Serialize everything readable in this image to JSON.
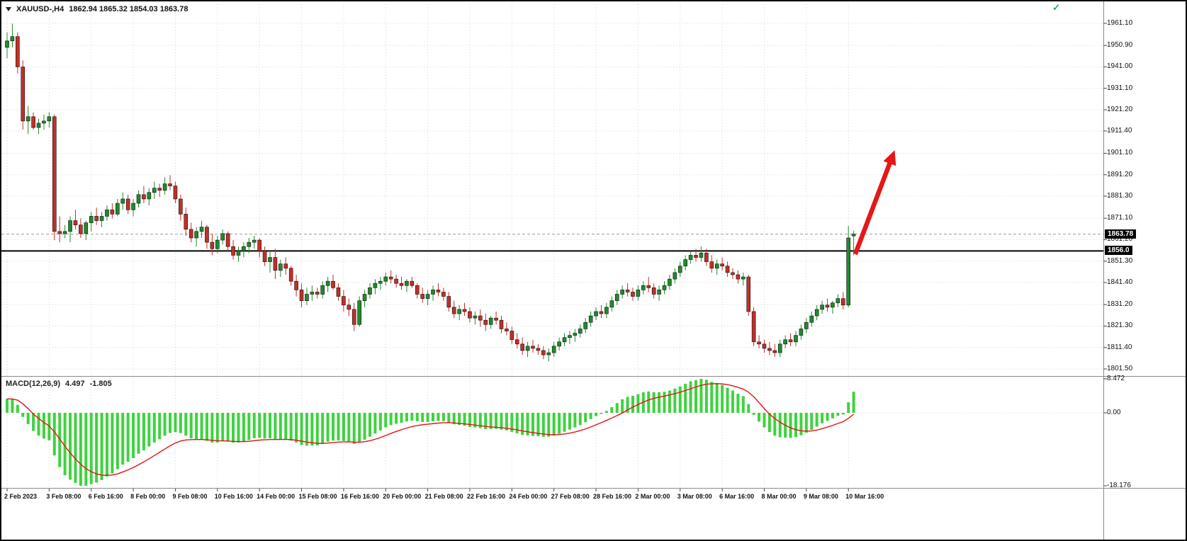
{
  "window": {
    "symbol_label": "XAUUSD-,H4",
    "ohlc_label": "1862.94 1865.32 1854.03 1863.78"
  },
  "price_scale": {
    "bid_badge": "1863.78",
    "line_badge": "1856.0"
  },
  "macd_panel": {
    "label": "MACD(12,26,9)",
    "value_main": "4.497",
    "value_signal": "-1.805",
    "scale_top": "8.472",
    "scale_zero": "0.00",
    "scale_bottom": "-18.176"
  },
  "icons": {
    "green_check": "✓"
  },
  "colors": {
    "bull": "#1f8b2c",
    "bear": "#c22f28",
    "grid": "#d6d6d6",
    "hist": "#3fd23f",
    "signal": "#e31414",
    "hline": "#000000",
    "arrow": "#e51717",
    "separator": "#8a8a8a",
    "badge_bg": "#000000",
    "badge_fg": "#ffffff",
    "text": "#111111"
  },
  "chart_data": {
    "type": "candlestick",
    "symbol": "XAUUSD",
    "timeframe": "H4",
    "title": "XAUUSD-,H4 1862.94 1865.32 1854.03 1863.78",
    "current_price": 1863.78,
    "horizontal_line_price": 1856.0,
    "y_ticks": [
      1961.1,
      1950.9,
      1941.0,
      1931.1,
      1921.2,
      1911.4,
      1901.1,
      1891.2,
      1881.3,
      1871.1,
      1861.2,
      1851.3,
      1841.4,
      1831.2,
      1821.3,
      1811.4,
      1801.5
    ],
    "x_tick_step": 8,
    "x_tick_labels": [
      "2 Feb 2023",
      "3 Feb 08:00",
      "6 Feb 16:00",
      "8 Feb 00:00",
      "9 Feb 08:00",
      "10 Feb 16:00",
      "14 Feb 00:00",
      "15 Feb 08:00",
      "16 Feb 16:00",
      "20 Feb 00:00",
      "21 Feb 08:00",
      "22 Feb 16:00",
      "24 Feb 00:00",
      "27 Feb 08:00",
      "28 Feb 16:00",
      "2 Mar 00:00",
      "3 Mar 08:00",
      "6 Mar 16:00",
      "8 Mar 00:00",
      "9 Mar 08:00",
      "10 Mar 16:00"
    ],
    "candles": [
      [
        1950,
        1957,
        1945,
        1953
      ],
      [
        1953,
        1961,
        1950,
        1955
      ],
      [
        1955,
        1957,
        1938,
        1941
      ],
      [
        1941,
        1944,
        1912,
        1916
      ],
      [
        1916,
        1923,
        1910,
        1918
      ],
      [
        1918,
        1920,
        1912,
        1913
      ],
      [
        1913,
        1917,
        1910,
        1915
      ],
      [
        1915,
        1919,
        1912,
        1916
      ],
      [
        1916,
        1920,
        1913,
        1918
      ],
      [
        1918,
        1919,
        1861,
        1865
      ],
      [
        1865,
        1872,
        1860,
        1864
      ],
      [
        1864,
        1868,
        1862,
        1865
      ],
      [
        1865,
        1872,
        1860,
        1870
      ],
      [
        1870,
        1875,
        1866,
        1868
      ],
      [
        1868,
        1871,
        1862,
        1864
      ],
      [
        1864,
        1870,
        1861,
        1869
      ],
      [
        1869,
        1874,
        1865,
        1872
      ],
      [
        1872,
        1876,
        1868,
        1870
      ],
      [
        1870,
        1874,
        1867,
        1872
      ],
      [
        1872,
        1877,
        1870,
        1875
      ],
      [
        1875,
        1878,
        1871,
        1873
      ],
      [
        1873,
        1880,
        1872,
        1878
      ],
      [
        1878,
        1883,
        1875,
        1880
      ],
      [
        1880,
        1882,
        1873,
        1875
      ],
      [
        1875,
        1880,
        1872,
        1878
      ],
      [
        1878,
        1884,
        1876,
        1882
      ],
      [
        1882,
        1886,
        1878,
        1880
      ],
      [
        1880,
        1885,
        1877,
        1883
      ],
      [
        1883,
        1888,
        1880,
        1885
      ],
      [
        1885,
        1887,
        1881,
        1884
      ],
      [
        1884,
        1890,
        1882,
        1887
      ],
      [
        1887,
        1891,
        1884,
        1886
      ],
      [
        1886,
        1888,
        1878,
        1880
      ],
      [
        1880,
        1882,
        1870,
        1873
      ],
      [
        1873,
        1876,
        1863,
        1866
      ],
      [
        1866,
        1869,
        1860,
        1862
      ],
      [
        1862,
        1867,
        1858,
        1865
      ],
      [
        1865,
        1870,
        1862,
        1867
      ],
      [
        1867,
        1868,
        1857,
        1860
      ],
      [
        1860,
        1864,
        1854,
        1857
      ],
      [
        1857,
        1863,
        1855,
        1861
      ],
      [
        1861,
        1866,
        1859,
        1864
      ],
      [
        1864,
        1865,
        1856,
        1858
      ],
      [
        1858,
        1861,
        1852,
        1854
      ],
      [
        1854,
        1858,
        1851,
        1856
      ],
      [
        1856,
        1860,
        1853,
        1858
      ],
      [
        1858,
        1862,
        1855,
        1860
      ],
      [
        1860,
        1863,
        1857,
        1861
      ],
      [
        1861,
        1862,
        1853,
        1856
      ],
      [
        1856,
        1858,
        1849,
        1851
      ],
      [
        1851,
        1856,
        1846,
        1853
      ],
      [
        1853,
        1857,
        1843,
        1847
      ],
      [
        1847,
        1852,
        1844,
        1850
      ],
      [
        1850,
        1853,
        1845,
        1848
      ],
      [
        1848,
        1849,
        1840,
        1842
      ],
      [
        1842,
        1845,
        1835,
        1838
      ],
      [
        1838,
        1841,
        1830,
        1833
      ],
      [
        1833,
        1839,
        1831,
        1836
      ],
      [
        1836,
        1840,
        1833,
        1837
      ],
      [
        1837,
        1839,
        1834,
        1836
      ],
      [
        1836,
        1842,
        1834,
        1840
      ],
      [
        1840,
        1844,
        1837,
        1842
      ],
      [
        1842,
        1845,
        1838,
        1839
      ],
      [
        1839,
        1841,
        1833,
        1835
      ],
      [
        1835,
        1838,
        1828,
        1831
      ],
      [
        1831,
        1834,
        1826,
        1829
      ],
      [
        1829,
        1832,
        1819,
        1822
      ],
      [
        1822,
        1835,
        1821,
        1833
      ],
      [
        1833,
        1838,
        1830,
        1836
      ],
      [
        1836,
        1841,
        1834,
        1839
      ],
      [
        1839,
        1843,
        1836,
        1841
      ],
      [
        1841,
        1844,
        1838,
        1842
      ],
      [
        1842,
        1846,
        1840,
        1844
      ],
      [
        1844,
        1847,
        1841,
        1843
      ],
      [
        1843,
        1845,
        1839,
        1841
      ],
      [
        1841,
        1844,
        1838,
        1840
      ],
      [
        1840,
        1843,
        1837,
        1842
      ],
      [
        1842,
        1844,
        1839,
        1840
      ],
      [
        1840,
        1841,
        1834,
        1836
      ],
      [
        1836,
        1839,
        1832,
        1834
      ],
      [
        1834,
        1838,
        1831,
        1836
      ],
      [
        1836,
        1840,
        1833,
        1838
      ],
      [
        1838,
        1841,
        1835,
        1837
      ],
      [
        1837,
        1839,
        1833,
        1835
      ],
      [
        1835,
        1837,
        1828,
        1830
      ],
      [
        1830,
        1833,
        1825,
        1827
      ],
      [
        1827,
        1831,
        1824,
        1829
      ],
      [
        1829,
        1832,
        1826,
        1828
      ],
      [
        1828,
        1830,
        1823,
        1825
      ],
      [
        1825,
        1828,
        1822,
        1826
      ],
      [
        1826,
        1829,
        1821,
        1824
      ],
      [
        1824,
        1827,
        1819,
        1822
      ],
      [
        1822,
        1826,
        1820,
        1825
      ],
      [
        1825,
        1828,
        1822,
        1824
      ],
      [
        1824,
        1826,
        1818,
        1820
      ],
      [
        1820,
        1823,
        1817,
        1819
      ],
      [
        1819,
        1821,
        1813,
        1815
      ],
      [
        1815,
        1818,
        1811,
        1813
      ],
      [
        1813,
        1816,
        1808,
        1810
      ],
      [
        1810,
        1814,
        1807,
        1812
      ],
      [
        1812,
        1815,
        1809,
        1811
      ],
      [
        1811,
        1813,
        1808,
        1810
      ],
      [
        1810,
        1812,
        1806,
        1808
      ],
      [
        1808,
        1811,
        1805,
        1809
      ],
      [
        1809,
        1814,
        1807,
        1812
      ],
      [
        1812,
        1816,
        1810,
        1814
      ],
      [
        1814,
        1818,
        1812,
        1816
      ],
      [
        1816,
        1819,
        1813,
        1817
      ],
      [
        1817,
        1820,
        1814,
        1818
      ],
      [
        1818,
        1822,
        1816,
        1820
      ],
      [
        1820,
        1825,
        1818,
        1823
      ],
      [
        1823,
        1828,
        1821,
        1826
      ],
      [
        1826,
        1830,
        1824,
        1828
      ],
      [
        1828,
        1831,
        1825,
        1827
      ],
      [
        1827,
        1832,
        1825,
        1830
      ],
      [
        1830,
        1835,
        1828,
        1833
      ],
      [
        1833,
        1838,
        1831,
        1836
      ],
      [
        1836,
        1840,
        1834,
        1838
      ],
      [
        1838,
        1841,
        1835,
        1837
      ],
      [
        1837,
        1839,
        1833,
        1835
      ],
      [
        1835,
        1840,
        1833,
        1838
      ],
      [
        1838,
        1842,
        1836,
        1840
      ],
      [
        1840,
        1844,
        1837,
        1839
      ],
      [
        1839,
        1841,
        1834,
        1836
      ],
      [
        1836,
        1840,
        1833,
        1838
      ],
      [
        1838,
        1842,
        1836,
        1840
      ],
      [
        1840,
        1845,
        1838,
        1843
      ],
      [
        1843,
        1848,
        1841,
        1846
      ],
      [
        1846,
        1851,
        1844,
        1849
      ],
      [
        1849,
        1854,
        1847,
        1852
      ],
      [
        1852,
        1856,
        1850,
        1854
      ],
      [
        1854,
        1857,
        1851,
        1853
      ],
      [
        1853,
        1858,
        1851,
        1855
      ],
      [
        1855,
        1857,
        1849,
        1851
      ],
      [
        1851,
        1854,
        1846,
        1848
      ],
      [
        1848,
        1852,
        1845,
        1850
      ],
      [
        1850,
        1853,
        1847,
        1849
      ],
      [
        1849,
        1851,
        1844,
        1846
      ],
      [
        1846,
        1848,
        1843,
        1845
      ],
      [
        1845,
        1847,
        1841,
        1843
      ],
      [
        1843,
        1846,
        1840,
        1844
      ],
      [
        1844,
        1845,
        1826,
        1828
      ],
      [
        1828,
        1830,
        1812,
        1814
      ],
      [
        1814,
        1817,
        1811,
        1813
      ],
      [
        1813,
        1815,
        1809,
        1811
      ],
      [
        1811,
        1814,
        1808,
        1810
      ],
      [
        1810,
        1813,
        1807,
        1809
      ],
      [
        1809,
        1815,
        1807,
        1813
      ],
      [
        1813,
        1817,
        1811,
        1815
      ],
      [
        1815,
        1818,
        1812,
        1814
      ],
      [
        1814,
        1819,
        1812,
        1817
      ],
      [
        1817,
        1822,
        1815,
        1820
      ],
      [
        1820,
        1825,
        1818,
        1823
      ],
      [
        1823,
        1828,
        1821,
        1826
      ],
      [
        1826,
        1831,
        1824,
        1829
      ],
      [
        1829,
        1833,
        1827,
        1831
      ],
      [
        1831,
        1834,
        1828,
        1830
      ],
      [
        1830,
        1833,
        1827,
        1832
      ],
      [
        1832,
        1836,
        1830,
        1834
      ],
      [
        1834,
        1837,
        1829,
        1831
      ],
      [
        1831,
        1867.5,
        1830,
        1862
      ],
      [
        1862.94,
        1865.32,
        1854.03,
        1863.78
      ]
    ],
    "indicator": {
      "type": "MACD",
      "fast": 12,
      "slow": 26,
      "signal": 9,
      "current_main": 4.497,
      "current_signal": -1.805,
      "scale_max": 8.472,
      "scale_min": -18.176,
      "seed_offset": 3.0
    },
    "annotation_arrow": {
      "from_index": 161.3,
      "from_price": 1854.5,
      "to_index": 168.8,
      "to_price": 1902.5
    }
  }
}
